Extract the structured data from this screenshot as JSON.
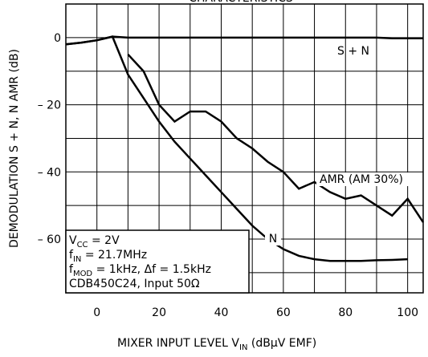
{
  "chart_data": {
    "type": "line",
    "title": "CHARACTERISTICS",
    "y_label": "DEMODULATION S + N, N AMR   (dB)",
    "x_label": [
      "MIXER INPUT LEVEL   V",
      "IN",
      "   (dBμV EMF)"
    ],
    "x": [
      -10,
      -5,
      0,
      5,
      10,
      15,
      20,
      25,
      30,
      35,
      40,
      45,
      50,
      55,
      60,
      65,
      70,
      75,
      80,
      85,
      90,
      95,
      100,
      105
    ],
    "series": [
      {
        "name": "S + N",
        "color": "#000000",
        "values": [
          -2,
          -1.5,
          -0.8,
          0.3,
          0,
          0,
          0,
          0,
          0,
          0,
          0,
          0,
          0,
          0,
          0,
          0,
          0,
          0,
          0,
          0,
          0,
          -0.2,
          -0.2,
          -0.2
        ]
      },
      {
        "name": "N",
        "color": "#000000",
        "values": [
          -2,
          -1.5,
          -0.8,
          0.3,
          -11,
          -18,
          -25,
          -31,
          -36,
          -41,
          -46,
          -51,
          -56,
          -60,
          -63,
          -65,
          -66,
          -66.5,
          -66.5,
          -66.5,
          -66.3,
          -66.2,
          -66,
          null
        ]
      },
      {
        "name": "AMR (AM 30%)",
        "color": "#000000",
        "values": [
          null,
          null,
          null,
          null,
          -5,
          -10,
          -20,
          -25,
          -22,
          -22,
          -25,
          -30,
          -33,
          -37,
          -40,
          -45,
          -43,
          -46,
          -48,
          -47,
          -50,
          -53,
          -48,
          -55
        ]
      }
    ],
    "notes": [
      [
        "V",
        "CC",
        " = 2V"
      ],
      [
        "f",
        "IN",
        " = 21.7MHz"
      ],
      [
        "f",
        "MOD",
        " = 1kHz, Δf = 1.5kHz"
      ],
      [
        "CDB450C24, Input 50Ω"
      ]
    ],
    "xlim": [
      -10,
      105
    ],
    "ylim": [
      -76,
      10
    ],
    "xticks": [
      0,
      20,
      40,
      60,
      80,
      100
    ],
    "yticks": [
      0,
      {
        "value": -20,
        "label": "– 20"
      },
      {
        "value": -40,
        "label": "– 40"
      },
      {
        "value": -60,
        "label": "– 60"
      }
    ],
    "grid": true
  }
}
